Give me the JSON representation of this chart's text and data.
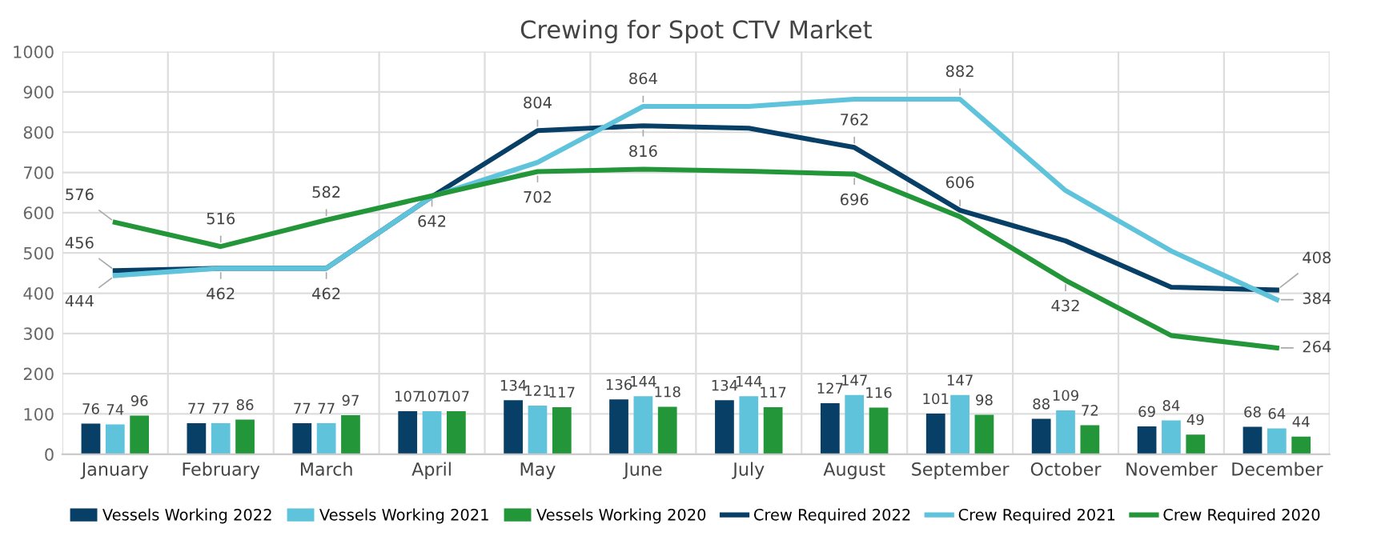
{
  "chart_data": {
    "type": "bar",
    "title": "Crewing for Spot CTV Market",
    "categories": [
      "January",
      "February",
      "March",
      "April",
      "May",
      "June",
      "July",
      "August",
      "September",
      "October",
      "November",
      "December"
    ],
    "ylim": [
      0,
      1000
    ],
    "yticks": [
      0,
      100,
      200,
      300,
      400,
      500,
      600,
      700,
      800,
      900,
      1000
    ],
    "grid": true,
    "legend": "bottom",
    "data_labels": true,
    "series": [
      {
        "name": "Vessels Working 2022",
        "color": "#073f66",
        "values": [
          76,
          77,
          77,
          107,
          134,
          136,
          134,
          127,
          101,
          88,
          69,
          68
        ]
      },
      {
        "name": "Vessels Working 2021",
        "color": "#5fc3dc",
        "values": [
          74,
          77,
          77,
          107,
          121,
          144,
          144,
          147,
          147,
          109,
          84,
          64
        ]
      },
      {
        "name": "Vessels Working 2020",
        "color": "#229638",
        "values": [
          96,
          86,
          97,
          107,
          117,
          118,
          117,
          116,
          98,
          72,
          49,
          44
        ]
      },
      {
        "name": "Crew Required 2022",
        "type": "line",
        "color": "#073f66",
        "values": [
          456,
          462,
          462,
          640,
          804,
          816,
          810,
          762,
          606,
          530,
          415,
          408
        ],
        "value_labels": [
          "456",
          null,
          null,
          null,
          "804",
          "816",
          null,
          "762",
          "606",
          null,
          null,
          "408"
        ]
      },
      {
        "name": "Crew Required 2021",
        "type": "line",
        "color": "#5fc3dc",
        "values": [
          444,
          462,
          462,
          640,
          725,
          864,
          864,
          882,
          882,
          655,
          505,
          384
        ],
        "value_labels": [
          "444",
          "462",
          "462",
          null,
          null,
          "864",
          null,
          null,
          "882",
          null,
          null,
          "384"
        ]
      },
      {
        "name": "Crew Required 2020",
        "type": "line",
        "color": "#229638",
        "values": [
          576,
          516,
          582,
          642,
          702,
          708,
          703,
          696,
          590,
          432,
          295,
          264
        ],
        "value_labels": [
          "576",
          "516",
          "582",
          "642",
          "702",
          null,
          null,
          "696",
          null,
          "432",
          null,
          "264"
        ]
      }
    ]
  }
}
